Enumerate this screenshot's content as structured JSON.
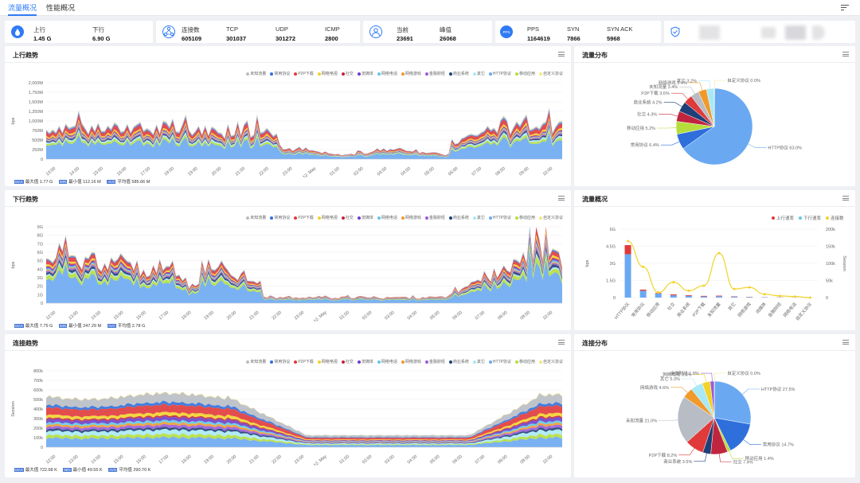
{
  "tabs": [
    {
      "label": "流量概况"
    },
    {
      "label": "性能概况"
    }
  ],
  "stat_cards": [
    {
      "icon": "drop-icon",
      "items": [
        {
          "k": "上行",
          "v": "1.45 G"
        },
        {
          "k": "下行",
          "v": "6.90 G"
        }
      ]
    },
    {
      "icon": "network-icon",
      "items": [
        {
          "k": "连接数",
          "v": "605109"
        },
        {
          "k": "TCP",
          "v": "301037"
        },
        {
          "k": "UDP",
          "v": "301272"
        },
        {
          "k": "ICMP",
          "v": "2800"
        }
      ]
    },
    {
      "icon": "user-icon",
      "items": [
        {
          "k": "当前",
          "v": "23691"
        },
        {
          "k": "峰值",
          "v": "26068"
        }
      ]
    },
    {
      "icon": "pps-icon",
      "items": [
        {
          "k": "PPS",
          "v": "1164619"
        },
        {
          "k": "SYN",
          "v": "7866"
        },
        {
          "k": "SYN ACK",
          "v": "5968"
        }
      ]
    },
    {
      "icon": "shield-icon",
      "items": []
    }
  ],
  "legend": [
    "未知流量",
    "常用协议",
    "P2P下载",
    "网络电视",
    "社交",
    "流媒体",
    "网络电话",
    "网络游戏",
    "金融财经",
    "商业系统",
    "其它",
    "HTTP协议",
    "移动应用",
    "自定义协议"
  ],
  "colors": {
    "accent": "#2f7bf5",
    "series": [
      "#b8bcc4",
      "#2f6fdc",
      "#e03a3a",
      "#f2d22b",
      "#c0253f",
      "#6a3fc9",
      "#5fc8e8",
      "#f09a2c",
      "#9a5bd6",
      "#1f3f78",
      "#a9e9f5",
      "#6aa9f2",
      "#b5de3c",
      "#f7e58a"
    ]
  },
  "upload": {
    "title": "上行趋势",
    "y_ticks": [
      "2,000M",
      "1,750M",
      "1,500M",
      "1,250M",
      "1,000M",
      "750M",
      "500M",
      "250M",
      "0"
    ],
    "y_label": "bps",
    "x_ticks": [
      "13:00",
      "14:00",
      "15:00",
      "16:00",
      "17:00",
      "18:00",
      "19:00",
      "20:00",
      "21:00",
      "22:00",
      "23:00",
      "12. May",
      "01:00",
      "02:00",
      "03:00",
      "04:00",
      "05:00",
      "06:00",
      "07:00",
      "08:00",
      "09:00",
      "10:00"
    ],
    "stats": [
      {
        "tag": "MAX",
        "text": "最大值 1.77 G"
      },
      {
        "tag": "MIN",
        "text": "最小值 112.16 M"
      },
      {
        "tag": "AVG",
        "text": "平均值 585.66 M"
      }
    ]
  },
  "download": {
    "title": "下行趋势",
    "y_ticks": [
      "9G",
      "8G",
      "7G",
      "6G",
      "5G",
      "4G",
      "3G",
      "2G",
      "1G",
      "0"
    ],
    "y_label": "bps",
    "x_ticks": [
      "12:00",
      "13:00",
      "14:00",
      "15:00",
      "16:00",
      "17:00",
      "18:00",
      "19:00",
      "20:00",
      "21:00",
      "22:00",
      "23:00",
      "12. May",
      "01:00",
      "02:00",
      "03:00",
      "04:00",
      "05:00",
      "06:00",
      "07:00",
      "08:00",
      "09:00",
      "10:00"
    ],
    "stats": [
      {
        "tag": "MAX",
        "text": "最大值 7.75 G"
      },
      {
        "tag": "MIN",
        "text": "最小值 247.29 M"
      },
      {
        "tag": "AVG",
        "text": "平均值 2.78 G"
      }
    ]
  },
  "connections": {
    "title": "连接趋势",
    "y_ticks": [
      "800k",
      "700k",
      "600k",
      "500k",
      "400k",
      "300k",
      "200k",
      "100k",
      "0"
    ],
    "y_label": "Session",
    "x_ticks": [
      "12:00",
      "13:00",
      "14:00",
      "15:00",
      "16:00",
      "17:00",
      "18:00",
      "19:00",
      "20:00",
      "21:00",
      "22:00",
      "23:00",
      "12. May",
      "01:00",
      "02:00",
      "03:00",
      "04:00",
      "05:00",
      "06:00",
      "07:00",
      "08:00",
      "09:00",
      "10:00"
    ],
    "stats": [
      {
        "tag": "MAX",
        "text": "最大值 722.68 K"
      },
      {
        "tag": "MIN",
        "text": "最小值 49.55 K"
      },
      {
        "tag": "AVG",
        "text": "平均值 290.70 K"
      }
    ]
  },
  "traffic_pie": {
    "title": "流量分布",
    "labels": [
      "HTTP协议 63.0%",
      "常用协议 6.4%",
      "移动应用 5.2%",
      "社交 4.3%",
      "商业系统 4.2%",
      "P2P下载 3.6%",
      "未知流量 3.4%",
      "网络游戏 3.4%",
      "其它 3.2%",
      "自定义协议 0.0%"
    ]
  },
  "traffic_overview": {
    "title": "流量概况",
    "legend": [
      "上行速率",
      "下行速率",
      "连接数"
    ],
    "y_left": [
      "6G",
      "4.5G",
      "3G",
      "1.5G",
      "0"
    ],
    "y_right": [
      "200k",
      "150k",
      "100k",
      "50k",
      "0"
    ],
    "y_left_label": "bps",
    "y_right_label": "Session"
  },
  "conn_pie": {
    "title": "连接分布",
    "labels": [
      "HTTP协议 27.5%",
      "常用协议 14.7%",
      "移动应用 1.4%",
      "社交 7.4%",
      "商业系统 3.5%",
      "P2P下载 8.2%",
      "未知流量 21.0%",
      "网络游戏 4.6%",
      "其它 5.3%",
      "网络电视 3.5%",
      "金融财经 1.8%",
      "自定义协议 0.0%"
    ]
  },
  "chart_data": [
    {
      "type": "area",
      "title": "上行趋势",
      "ylabel": "bps",
      "ylim": [
        0,
        2000
      ],
      "unit": "M",
      "max": "1.77 G",
      "min": "112.16 M",
      "avg": "585.66 M"
    },
    {
      "type": "area",
      "title": "下行趋势",
      "ylabel": "bps",
      "ylim": [
        0,
        9
      ],
      "unit": "G",
      "max": "7.75 G",
      "min": "247.29 M",
      "avg": "2.78 G"
    },
    {
      "type": "area",
      "title": "连接趋势",
      "ylabel": "Session",
      "ylim": [
        0,
        800
      ],
      "unit": "k",
      "max": "722.68 K",
      "min": "49.55 K",
      "avg": "290.70 K"
    },
    {
      "type": "pie",
      "title": "流量分布",
      "categories": [
        "HTTP协议",
        "常用协议",
        "移动应用",
        "社交",
        "商业系统",
        "P2P下载",
        "未知流量",
        "网络游戏",
        "其它",
        "自定义协议"
      ],
      "values": [
        63.0,
        6.4,
        5.2,
        4.3,
        4.2,
        3.6,
        3.4,
        3.4,
        3.2,
        0.0
      ]
    },
    {
      "type": "bar",
      "title": "流量概况",
      "categories": [
        "HTTP协议",
        "常用协议",
        "移动应用",
        "社交",
        "商业系统",
        "P2P下载",
        "未知流量",
        "其它",
        "网络游戏",
        "流媒体",
        "金融财经",
        "网络电话",
        "自定义协议"
      ],
      "series": [
        {
          "name": "上行速率",
          "values": [
            0.8,
            0.1,
            0.05,
            0.08,
            0.06,
            0.05,
            0.05,
            0.03,
            0.02,
            0.01,
            0.01,
            0.005,
            0
          ]
        },
        {
          "name": "下行速率",
          "values": [
            3.8,
            0.6,
            0.35,
            0.2,
            0.15,
            0.1,
            0.12,
            0.08,
            0.05,
            0.03,
            0.02,
            0.01,
            0
          ]
        },
        {
          "name": "连接数",
          "values": [
            165,
            90,
            15,
            45,
            20,
            35,
            130,
            25,
            30,
            10,
            5,
            3,
            0
          ]
        }
      ],
      "ylim_left": [
        0,
        6
      ],
      "ylim_right": [
        0,
        200
      ]
    },
    {
      "type": "pie",
      "title": "连接分布",
      "categories": [
        "HTTP协议",
        "常用协议",
        "移动应用",
        "社交",
        "商业系统",
        "P2P下载",
        "未知流量",
        "网络游戏",
        "其它",
        "网络电视",
        "金融财经",
        "自定义协议"
      ],
      "values": [
        27.5,
        14.7,
        1.4,
        7.4,
        3.5,
        8.2,
        21.0,
        4.6,
        5.3,
        3.5,
        1.8,
        0.0
      ]
    }
  ]
}
